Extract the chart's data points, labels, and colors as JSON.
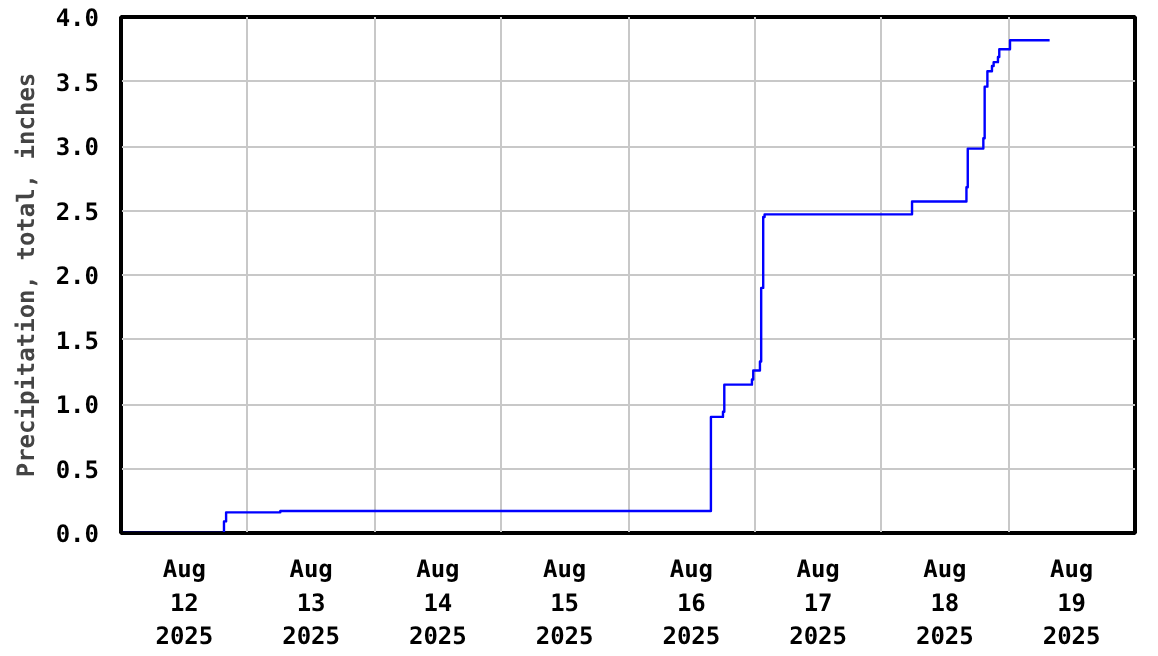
{
  "chart_data": {
    "type": "step",
    "ylabel": "Precipitation, total, inches",
    "x": [
      "2025-08-11T12:20",
      "2025-08-12T07:30",
      "2025-08-12T07:54",
      "2025-08-12T18:10",
      "2025-08-16T03:42",
      "2025-08-16T05:59",
      "2025-08-16T06:14",
      "2025-08-16T11:28",
      "2025-08-16T11:43",
      "2025-08-16T12:59",
      "2025-08-16T13:13",
      "2025-08-16T13:36",
      "2025-08-16T13:52",
      "2025-08-17T17:47",
      "2025-08-18T04:05",
      "2025-08-18T04:20",
      "2025-08-18T07:17",
      "2025-08-18T07:32",
      "2025-08-18T08:03",
      "2025-08-18T08:55",
      "2025-08-18T09:14",
      "2025-08-18T10:03",
      "2025-08-18T10:18",
      "2025-08-18T12:20",
      "2025-08-18T19:50"
    ],
    "series": [
      {
        "color": "#0000ff",
        "values": [
          0.0,
          0.09,
          0.16,
          0.17,
          0.9,
          0.94,
          1.15,
          1.19,
          1.26,
          1.33,
          1.9,
          2.45,
          2.47,
          2.57,
          2.68,
          2.98,
          3.06,
          3.46,
          3.58,
          3.62,
          3.65,
          3.69,
          3.75,
          3.82,
          3.82
        ]
      }
    ],
    "xlim": [
      "2025-08-11T12:00",
      "2025-08-19T12:00"
    ],
    "xticks": [
      {
        "value": "2025-08-12",
        "label": "Aug\n12\n2025"
      },
      {
        "value": "2025-08-13",
        "label": "Aug\n13\n2025"
      },
      {
        "value": "2025-08-14",
        "label": "Aug\n14\n2025"
      },
      {
        "value": "2025-08-15",
        "label": "Aug\n15\n2025"
      },
      {
        "value": "2025-08-16",
        "label": "Aug\n16\n2025"
      },
      {
        "value": "2025-08-17",
        "label": "Aug\n17\n2025"
      },
      {
        "value": "2025-08-18",
        "label": "Aug\n18\n2025"
      },
      {
        "value": "2025-08-19",
        "label": "Aug\n19\n2025"
      },
      {
        "value": "2025-08-12T12:00",
        "label": null
      },
      {
        "value": "2025-08-13T12:00",
        "label": null
      },
      {
        "value": "2025-08-14T12:00",
        "label": null
      },
      {
        "value": "2025-08-15T12:00",
        "label": null
      },
      {
        "value": "2025-08-16T12:00",
        "label": null
      },
      {
        "value": "2025-08-17T12:00",
        "label": null
      },
      {
        "value": "2025-08-18T12:00",
        "label": null
      }
    ],
    "ylim": [
      0,
      4.0
    ],
    "yticks": [
      {
        "value": 0,
        "label": "0.0"
      },
      {
        "value": 0.5,
        "label": "0.5"
      },
      {
        "value": 1,
        "label": "1.0"
      },
      {
        "value": 1.5,
        "label": "1.5"
      },
      {
        "value": 2,
        "label": "2.0"
      },
      {
        "value": 2.5,
        "label": "2.5"
      },
      {
        "value": 3,
        "label": "3.0"
      },
      {
        "value": 3.5,
        "label": "3.5"
      },
      {
        "value": 4,
        "label": "4.0"
      }
    ],
    "grid": true
  }
}
